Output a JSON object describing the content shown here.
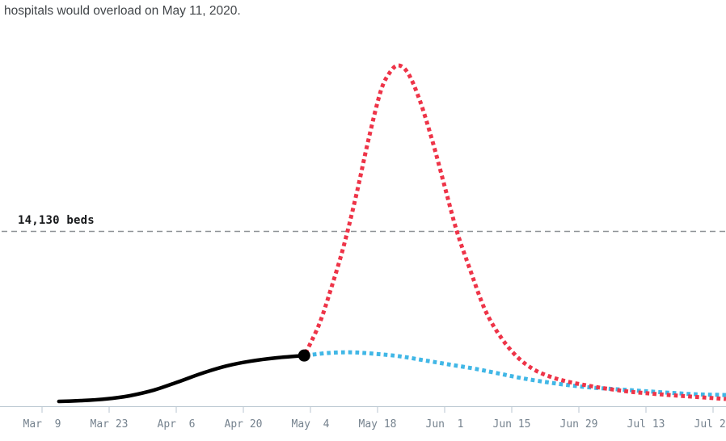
{
  "colors": {
    "axis": "#b9c6d0",
    "tick_label": "#75828e",
    "threshold_line": "#8d9196",
    "title_text": "#414549",
    "threshold_text": "#17191b"
  },
  "chart_data": {
    "type": "line",
    "title": "hospitals would overload on May 11, 2020.",
    "x_axis": {
      "unit": "date",
      "start_date_label": "Mar  9",
      "tick_interval_days": 14,
      "tick_labels": [
        "Mar  9",
        "Mar 23",
        "Apr  6",
        "Apr 20",
        "May  4",
        "May 18",
        "Jun  1",
        "Jun 15",
        "Jun 29",
        "Jul 13",
        "Jul 27"
      ]
    },
    "y_axis": {
      "unit": "beds",
      "scale_visible": false,
      "reference_value": 14130
    },
    "threshold": {
      "label": "14,130 beds",
      "value": 14130
    },
    "grid": "off",
    "legend": "none",
    "series": [
      {
        "name": "historical",
        "color": "#000000",
        "style": "solid",
        "marker_end": true,
        "points_day_beds": [
          [
            3.5,
            390
          ],
          [
            8.1,
            455
          ],
          [
            13.2,
            585
          ],
          [
            18.2,
            845
          ],
          [
            23.3,
            1300
          ],
          [
            28.3,
            1955
          ],
          [
            33.4,
            2670
          ],
          [
            38.5,
            3255
          ],
          [
            43.5,
            3645
          ],
          [
            48.6,
            3905
          ],
          [
            54.7,
            4100
          ]
        ]
      },
      {
        "name": "blue_projection",
        "color": "#41b7e6",
        "style": "dotted",
        "marker_end": false,
        "points_day_beds": [
          [
            55.0,
            4100
          ],
          [
            59.5,
            4300
          ],
          [
            64.6,
            4360
          ],
          [
            69.7,
            4230
          ],
          [
            74.7,
            4035
          ],
          [
            79.8,
            3710
          ],
          [
            84.8,
            3385
          ],
          [
            89.9,
            3060
          ],
          [
            95.0,
            2670
          ],
          [
            100.0,
            2280
          ],
          [
            105.1,
            1955
          ],
          [
            110.1,
            1695
          ],
          [
            115.2,
            1495
          ],
          [
            120.3,
            1365
          ],
          [
            125.3,
            1235
          ],
          [
            130.4,
            1105
          ],
          [
            136.3,
            975
          ],
          [
            142.7,
            910
          ]
        ]
      },
      {
        "name": "red_projection",
        "color": "#ee3448",
        "style": "dotted",
        "marker_end": false,
        "points_day_beds": [
          [
            55.0,
            4300
          ],
          [
            57.9,
            6705
          ],
          [
            60.4,
            9635
          ],
          [
            62.9,
            12890
          ],
          [
            65.4,
            16800
          ],
          [
            68.0,
            21360
          ],
          [
            70.5,
            25265
          ],
          [
            72.2,
            26760
          ],
          [
            74.2,
            27545
          ],
          [
            76.4,
            26890
          ],
          [
            78.9,
            24615
          ],
          [
            81.5,
            21360
          ],
          [
            84.0,
            17775
          ],
          [
            86.5,
            14195
          ],
          [
            89.1,
            11265
          ],
          [
            92.4,
            7815
          ],
          [
            95.8,
            5535
          ],
          [
            99.2,
            3970
          ],
          [
            102.5,
            2995
          ],
          [
            105.9,
            2410
          ],
          [
            109.3,
            2020
          ],
          [
            113.5,
            1695
          ],
          [
            117.7,
            1430
          ],
          [
            122.8,
            1170
          ],
          [
            128.7,
            975
          ],
          [
            135.4,
            780
          ],
          [
            142.7,
            585
          ]
        ]
      }
    ]
  }
}
